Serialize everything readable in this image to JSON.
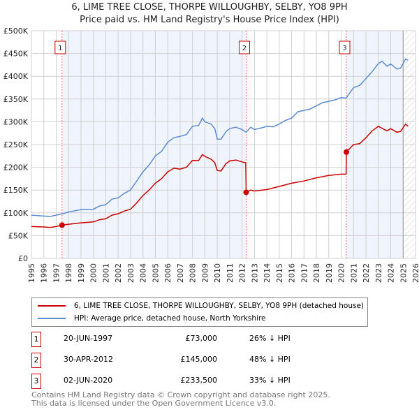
{
  "chart_data": {
    "type": "line",
    "title": "6, LIME TREE CLOSE, THORPE WILLOUGHBY, SELBY, YO8 9PH",
    "subtitle": "Price paid vs. HM Land Registry's House Price Index (HPI)",
    "xlim": [
      1995,
      2026
    ],
    "ylim": [
      0,
      500000
    ],
    "y_ticks": [
      "£0",
      "£50K",
      "£100K",
      "£150K",
      "£200K",
      "£250K",
      "£300K",
      "£350K",
      "£400K",
      "£450K",
      "£500K"
    ],
    "x_ticks": [
      "1995",
      "1996",
      "1997",
      "1998",
      "1999",
      "2000",
      "2001",
      "2002",
      "2003",
      "2004",
      "2005",
      "2006",
      "2007",
      "2008",
      "2009",
      "2010",
      "2011",
      "2012",
      "2013",
      "2014",
      "2015",
      "2016",
      "2017",
      "2018",
      "2019",
      "2020",
      "2021",
      "2022",
      "2023",
      "2024",
      "2025",
      "2026"
    ],
    "grid": true,
    "data_end_year": 2025.0,
    "series": [
      {
        "name": "6, LIME TREE CLOSE, THORPE WILLOUGHBY, SELBY, YO8 9PH (detached house)",
        "color": "#cc0000",
        "x": [
          1995,
          1996,
          1996.5,
          1997,
          1997.47,
          1998,
          1999,
          2000,
          2000.5,
          2001,
          2001.5,
          2002,
          2002.5,
          2003,
          2003.5,
          2004,
          2004.5,
          2005,
          2005.5,
          2006,
          2006.5,
          2007,
          2007.5,
          2008,
          2008.5,
          2008.8,
          2009,
          2009.5,
          2009.8,
          2010,
          2010.3,
          2010.7,
          2011,
          2011.5,
          2012,
          2012.3,
          2012.33,
          2012.7,
          2013,
          2014,
          2015,
          2016,
          2017,
          2018,
          2019,
          2020,
          2020.4,
          2020.42,
          2021,
          2021.5,
          2022,
          2022.5,
          2023,
          2023.7,
          2024,
          2024.5,
          2024.8,
          2025.2,
          2025.4
        ],
        "y": [
          70000,
          69000,
          68000,
          70000,
          73000,
          75000,
          78000,
          80000,
          85000,
          87000,
          95000,
          98000,
          104000,
          108000,
          122000,
          138000,
          150000,
          165000,
          175000,
          190000,
          198000,
          196000,
          200000,
          215000,
          215000,
          228000,
          224000,
          218000,
          210000,
          193000,
          192000,
          208000,
          214000,
          216000,
          212000,
          210000,
          145000,
          150000,
          148000,
          151000,
          158000,
          165000,
          170000,
          177000,
          182000,
          185000,
          185000,
          233500,
          250000,
          252000,
          265000,
          280000,
          290000,
          280000,
          285000,
          277000,
          279000,
          295000,
          290000
        ]
      },
      {
        "name": "HPI: Average price, detached house, North Yorkshire",
        "color": "#5b8bd0",
        "x": [
          1995,
          1996,
          1996.5,
          1997,
          1997.5,
          1998,
          1999,
          2000,
          2000.5,
          2001,
          2001.5,
          2002,
          2002.5,
          2003,
          2003.5,
          2004,
          2004.5,
          2005,
          2005.5,
          2006,
          2006.5,
          2007,
          2007.5,
          2008,
          2008.5,
          2008.8,
          2009,
          2009.5,
          2009.8,
          2010,
          2010.3,
          2010.7,
          2011,
          2011.5,
          2012,
          2012.33,
          2012.7,
          2013,
          2013.5,
          2014,
          2014.5,
          2015,
          2015.5,
          2016,
          2016.5,
          2017,
          2017.5,
          2018,
          2018.5,
          2019,
          2019.5,
          2020,
          2020.4,
          2021,
          2021.5,
          2022,
          2022.5,
          2023,
          2023.3,
          2023.7,
          2024,
          2024.5,
          2024.8,
          2025.2,
          2025.4
        ],
        "y": [
          95000,
          93000,
          92000,
          95000,
          98000,
          102000,
          107000,
          108000,
          115000,
          118000,
          130000,
          133000,
          143000,
          150000,
          170000,
          190000,
          205000,
          225000,
          235000,
          255000,
          265000,
          268000,
          272000,
          290000,
          292000,
          308000,
          300000,
          295000,
          285000,
          262000,
          262000,
          278000,
          285000,
          288000,
          283000,
          277000,
          288000,
          283000,
          286000,
          290000,
          289000,
          295000,
          303000,
          308000,
          322000,
          325000,
          328000,
          335000,
          342000,
          345000,
          348000,
          353000,
          352000,
          375000,
          380000,
          395000,
          410000,
          428000,
          433000,
          422000,
          427000,
          416000,
          418000,
          438000,
          435000
        ]
      }
    ],
    "annotations": [
      {
        "label": "1",
        "x": 1997.47,
        "y": 73000
      },
      {
        "label": "2",
        "x": 2012.33,
        "y": 145000
      },
      {
        "label": "3",
        "x": 2020.42,
        "y": 233500
      }
    ]
  },
  "legend": {
    "items": [
      "6, LIME TREE CLOSE, THORPE WILLOUGHBY, SELBY, YO8 9PH (detached house)",
      "HPI: Average price, detached house, North Yorkshire"
    ]
  },
  "sales": [
    {
      "num": "1",
      "date": "20-JUN-1997",
      "price": "£73,000",
      "hpi": "26% ↓ HPI"
    },
    {
      "num": "2",
      "date": "30-APR-2012",
      "price": "£145,000",
      "hpi": "48% ↓ HPI"
    },
    {
      "num": "3",
      "date": "02-JUN-2020",
      "price": "£233,500",
      "hpi": "33% ↓ HPI"
    }
  ],
  "footer": {
    "line1": "Contains HM Land Registry data © Crown copyright and database right 2025.",
    "line2": "This data is licensed under the Open Government Licence v3.0."
  }
}
